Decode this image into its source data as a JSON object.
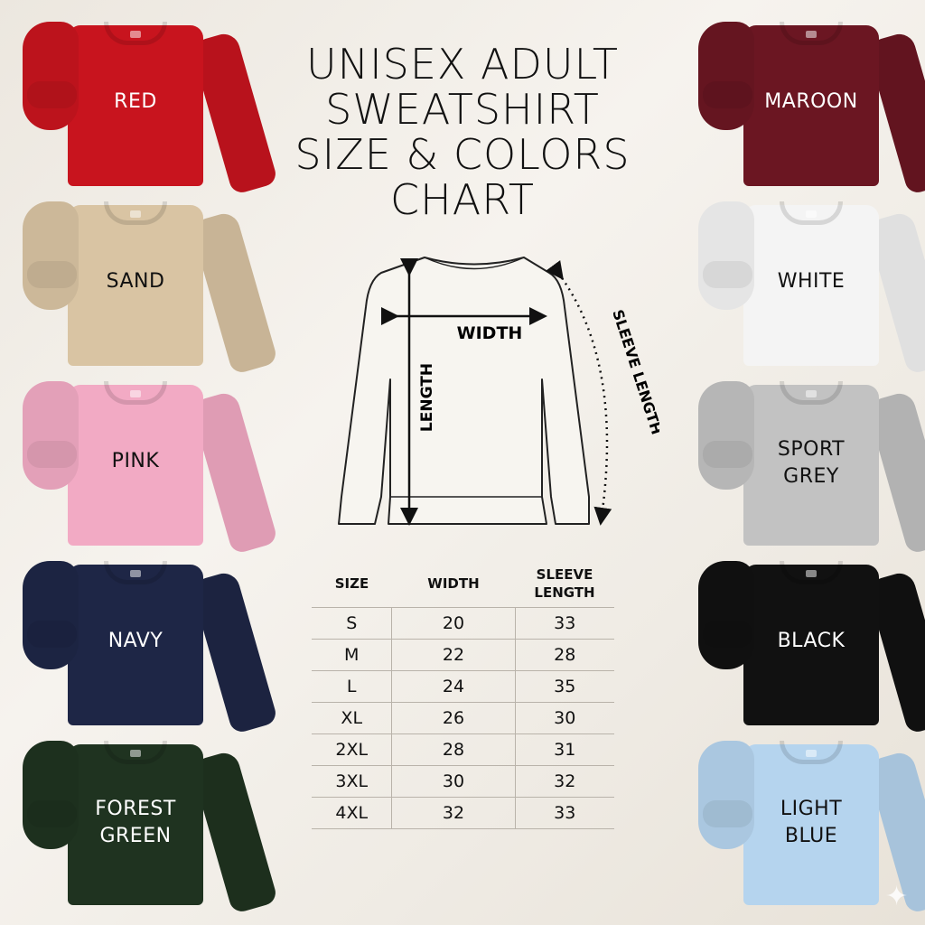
{
  "title": [
    "UNISEX ADULT",
    "SWEATSHIRT",
    "SIZE & COLORS",
    "CHART"
  ],
  "diagram": {
    "width_label": "WIDTH",
    "length_label": "LENGTH",
    "sleeve_label": "SLEEVE LENGTH"
  },
  "table": {
    "headers": [
      "SIZE",
      "WIDTH",
      "SLEEVE LENGTH"
    ],
    "rows": [
      [
        "S",
        "20",
        "33"
      ],
      [
        "M",
        "22",
        "28"
      ],
      [
        "L",
        "24",
        "35"
      ],
      [
        "XL",
        "26",
        "30"
      ],
      [
        "2XL",
        "28",
        "31"
      ],
      [
        "3XL",
        "30",
        "32"
      ],
      [
        "4XL",
        "32",
        "33"
      ]
    ]
  },
  "colors_left": [
    {
      "name": "RED",
      "hex": "#c8141e",
      "text": "#ffffff"
    },
    {
      "name": "SAND",
      "hex": "#d9c4a3",
      "text": "#111111"
    },
    {
      "name": "PINK",
      "hex": "#f2aac4",
      "text": "#111111"
    },
    {
      "name": "NAVY",
      "hex": "#1e2646",
      "text": "#ffffff"
    },
    {
      "name": "FOREST GREEN",
      "hex": "#1f3320",
      "text": "#ffffff"
    }
  ],
  "colors_right": [
    {
      "name": "MAROON",
      "hex": "#6b1622",
      "text": "#ffffff"
    },
    {
      "name": "WHITE",
      "hex": "#f4f4f4",
      "text": "#111111"
    },
    {
      "name": "SPORT GREY",
      "hex": "#c2c2c2",
      "text": "#111111"
    },
    {
      "name": "BLACK",
      "hex": "#111111",
      "text": "#ffffff"
    },
    {
      "name": "LIGHT BLUE",
      "hex": "#b5d4ee",
      "text": "#111111"
    }
  ]
}
